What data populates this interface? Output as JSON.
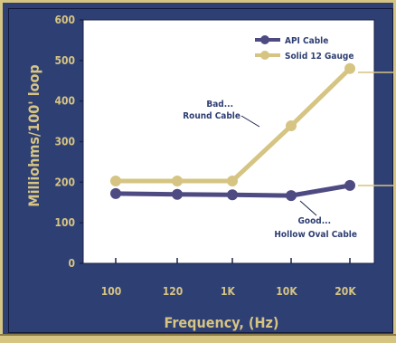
{
  "chart_data": {
    "type": "line",
    "categories": [
      "100",
      "120",
      "1K",
      "10K",
      "20K"
    ],
    "series": [
      {
        "name": "API Cable",
        "values": [
          172,
          170,
          169,
          167,
          192
        ],
        "color": "#4e4a82"
      },
      {
        "name": "Solid 12 Gauge",
        "values": [
          203,
          203,
          203,
          339,
          480
        ],
        "color": "#d6c483"
      }
    ],
    "ylim": [
      0,
      600
    ],
    "yticks": [
      0,
      100,
      200,
      300,
      400,
      500,
      600
    ],
    "xlabel": "Frequency, (Hz)",
    "ylabel": "Milliohms/100' loop",
    "legend_position": "top-right",
    "annotations": [
      {
        "lines": [
          "Bad...",
          "Round Cable"
        ],
        "series": "Solid 12 Gauge"
      },
      {
        "lines": [
          "Good...",
          "Hollow Oval Cable"
        ],
        "series": "API Cable"
      }
    ],
    "colors": {
      "background": "#2e3e72",
      "plot": "#ffffff",
      "accent": "#d6c483",
      "text": "#d6c483"
    }
  }
}
